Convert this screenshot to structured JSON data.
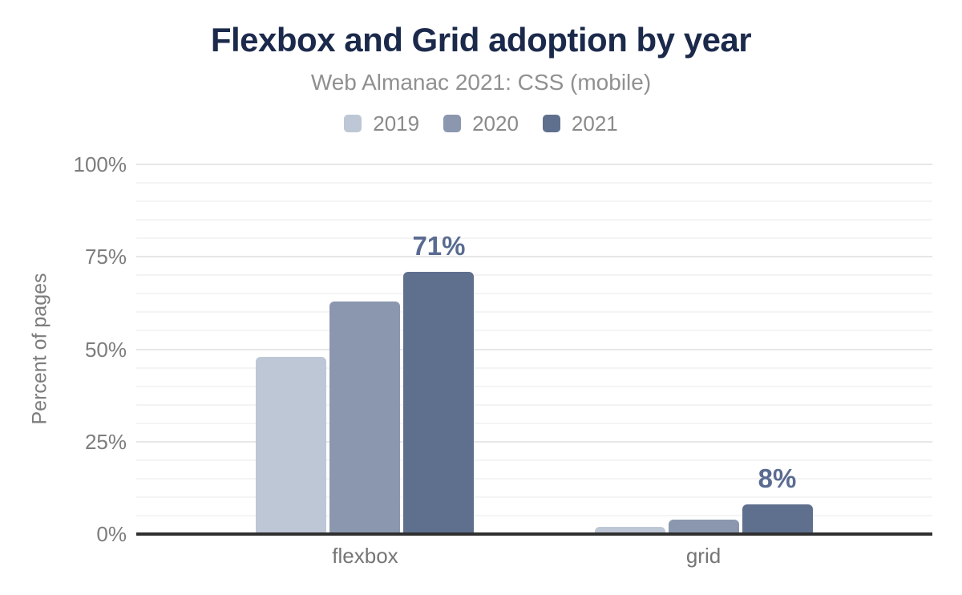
{
  "chart_data": {
    "type": "bar",
    "title": "Flexbox and Grid adoption by year",
    "subtitle": "Web Almanac 2021: CSS (mobile)",
    "xlabel": "",
    "ylabel": "Percent of pages",
    "categories": [
      "flexbox",
      "grid"
    ],
    "series": [
      {
        "name": "2019",
        "color": "#bdc7d6",
        "values": [
          48,
          2
        ],
        "labels": [
          "",
          ""
        ]
      },
      {
        "name": "2020",
        "color": "#8b97ae",
        "values": [
          63,
          4
        ],
        "labels": [
          "",
          ""
        ]
      },
      {
        "name": "2021",
        "color": "#5f6f8e",
        "values": [
          71,
          8
        ],
        "labels": [
          "71%",
          "8%"
        ]
      }
    ],
    "ylim": [
      0,
      100
    ],
    "yticks": [
      {
        "value": 0,
        "label": "0%"
      },
      {
        "value": 25,
        "label": "25%"
      },
      {
        "value": 50,
        "label": "50%"
      },
      {
        "value": 75,
        "label": "75%"
      },
      {
        "value": 100,
        "label": "100%"
      }
    ],
    "grid": {
      "on": true,
      "minor_step": 5,
      "major_step": 25
    },
    "legend_position": "top",
    "colors": {
      "title": "#1b294b",
      "subtitle": "#909090",
      "axis_text": "#7d7d7d",
      "category_text": "#757575",
      "value_label": "#5a6b91",
      "axis_line": "#2f2f2f",
      "grid_major": "#e7e7e7",
      "grid_minor": "#f4f4f4",
      "background": "#ffffff"
    }
  }
}
